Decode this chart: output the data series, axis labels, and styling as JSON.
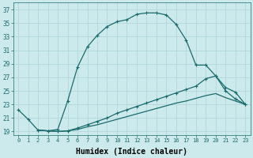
{
  "xlabel": "Humidex (Indice chaleur)",
  "bg_color": "#cce9ec",
  "line_color": "#1a6b6b",
  "grid_color": "#b0d8dc",
  "ylim": [
    18.5,
    38
  ],
  "xlim": [
    -0.5,
    23.5
  ],
  "yticks": [
    19,
    21,
    23,
    25,
    27,
    29,
    31,
    33,
    35,
    37
  ],
  "xticks": [
    0,
    1,
    2,
    3,
    4,
    5,
    6,
    7,
    8,
    9,
    10,
    11,
    12,
    13,
    14,
    15,
    16,
    17,
    18,
    19,
    20,
    21,
    22,
    23
  ],
  "line1_x": [
    0,
    1,
    2,
    3,
    4,
    5,
    6,
    7,
    8,
    9,
    10,
    11,
    12,
    13,
    14,
    15,
    16,
    17,
    18,
    19,
    20,
    21,
    22,
    23
  ],
  "line1_y": [
    22.2,
    20.8,
    19.2,
    19.1,
    19.3,
    23.5,
    28.5,
    31.5,
    33.2,
    34.5,
    35.2,
    35.5,
    36.3,
    36.5,
    36.5,
    36.2,
    34.8,
    32.5,
    28.8,
    28.8,
    27.2,
    25.0,
    23.8,
    23.0
  ],
  "line2_x": [
    2,
    3,
    4,
    5,
    6,
    7,
    8,
    9,
    10,
    11,
    12,
    13,
    14,
    15,
    16,
    17,
    18,
    19,
    20,
    21,
    22,
    23
  ],
  "line2_y": [
    19.2,
    19.1,
    19.0,
    19.1,
    19.5,
    20.0,
    20.5,
    21.0,
    21.7,
    22.2,
    22.7,
    23.2,
    23.7,
    24.2,
    24.7,
    25.2,
    25.7,
    26.8,
    27.2,
    25.5,
    24.8,
    23.0
  ],
  "line3_x": [
    2,
    3,
    4,
    5,
    6,
    7,
    8,
    9,
    10,
    11,
    12,
    13,
    14,
    15,
    16,
    17,
    18,
    19,
    20,
    21,
    22,
    23
  ],
  "line3_y": [
    19.2,
    19.1,
    19.0,
    19.1,
    19.3,
    19.7,
    20.0,
    20.4,
    20.8,
    21.2,
    21.6,
    22.0,
    22.4,
    22.8,
    23.2,
    23.5,
    23.9,
    24.3,
    24.6,
    24.0,
    23.5,
    23.0
  ]
}
